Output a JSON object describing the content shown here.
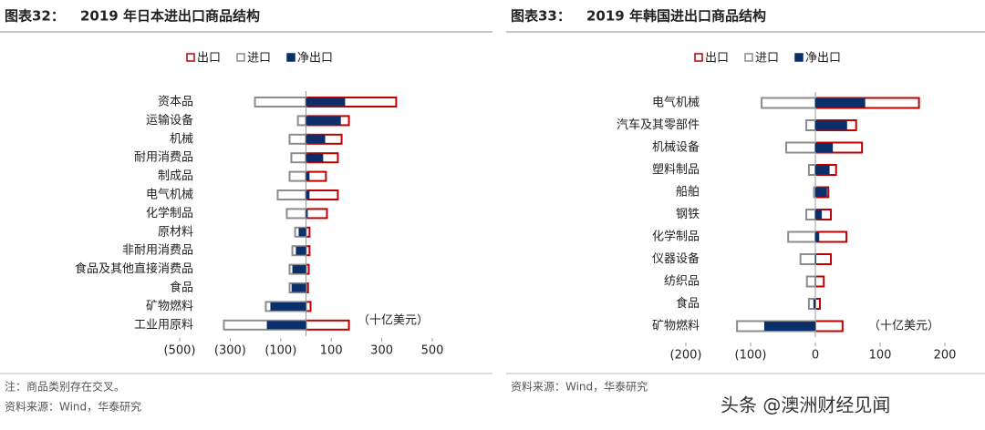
{
  "chart_data": [
    {
      "type": "bar",
      "orientation": "horizontal",
      "label": "图表32：",
      "title": "2019 年日本进出口商品结构",
      "unit": "（十亿美元）",
      "categories": [
        "资本品",
        "运输设备",
        "机械",
        "耐用消费品",
        "制成品",
        "电气机械",
        "化学制品",
        "原材料",
        "非耐用消费品",
        "食品及其他直接消费品",
        "食品",
        "矿物燃料",
        "工业用原料"
      ],
      "series": [
        {
          "name": "出口",
          "color": "#c00000",
          "style": "outline",
          "values": [
            357,
            170,
            141,
            126,
            79,
            126,
            83,
            14,
            14,
            11,
            8,
            18,
            170
          ]
        },
        {
          "name": "进口",
          "color": "#8c8c8c",
          "style": "outline",
          "values": [
            -202,
            -32,
            -65,
            -58,
            -65,
            -112,
            -76,
            -43,
            -54,
            -65,
            -65,
            -159,
            -325
          ]
        },
        {
          "name": "净出口",
          "color": "#0b2f6b",
          "style": "solid",
          "values": [
            155,
            138,
            76,
            68,
            14,
            14,
            7,
            -29,
            -40,
            -54,
            -57,
            -141,
            -155
          ]
        }
      ],
      "xlim": [
        -500,
        500
      ],
      "xticks": [
        {
          "value": -500,
          "label": "(500)"
        },
        {
          "value": -300,
          "label": "(300)"
        },
        {
          "value": -100,
          "label": "(100)"
        },
        100,
        300,
        500
      ],
      "footnotes": [
        "注：商品类别存在交叉。",
        "资料来源：Wind，华泰研究"
      ]
    },
    {
      "type": "bar",
      "orientation": "horizontal",
      "label": "图表33：",
      "title": "2019 年韩国进出口商品结构",
      "unit": "（十亿美元）",
      "categories": [
        "电气机械",
        "汽车及其零部件",
        "机械设备",
        "塑料制品",
        "船舶",
        "钢铁",
        "化学制品",
        "仪器设备",
        "纺织品",
        "食品",
        "矿物燃料"
      ],
      "series": [
        {
          "name": "出口",
          "color": "#c00000",
          "style": "outline",
          "values": [
            160,
            63,
            72,
            32,
            20,
            24,
            48,
            24,
            13,
            7,
            42
          ]
        },
        {
          "name": "进口",
          "color": "#8c8c8c",
          "style": "outline",
          "values": [
            -83,
            -14,
            -45,
            -10,
            -2,
            -14,
            -42,
            -23,
            -13,
            -10,
            -121
          ]
        },
        {
          "name": "净出口",
          "color": "#0b2f6b",
          "style": "solid",
          "values": [
            77,
            49,
            27,
            22,
            18,
            10,
            6,
            1,
            0,
            -3,
            -79
          ]
        }
      ],
      "xlim": [
        -200,
        200
      ],
      "xticks": [
        {
          "value": -200,
          "label": "(200)"
        },
        {
          "value": -100,
          "label": "(100)"
        },
        0,
        100,
        200
      ],
      "footnotes": [
        "资料来源：Wind，华泰研究"
      ]
    }
  ],
  "watermark": "头条 @澳洲财经见闻"
}
